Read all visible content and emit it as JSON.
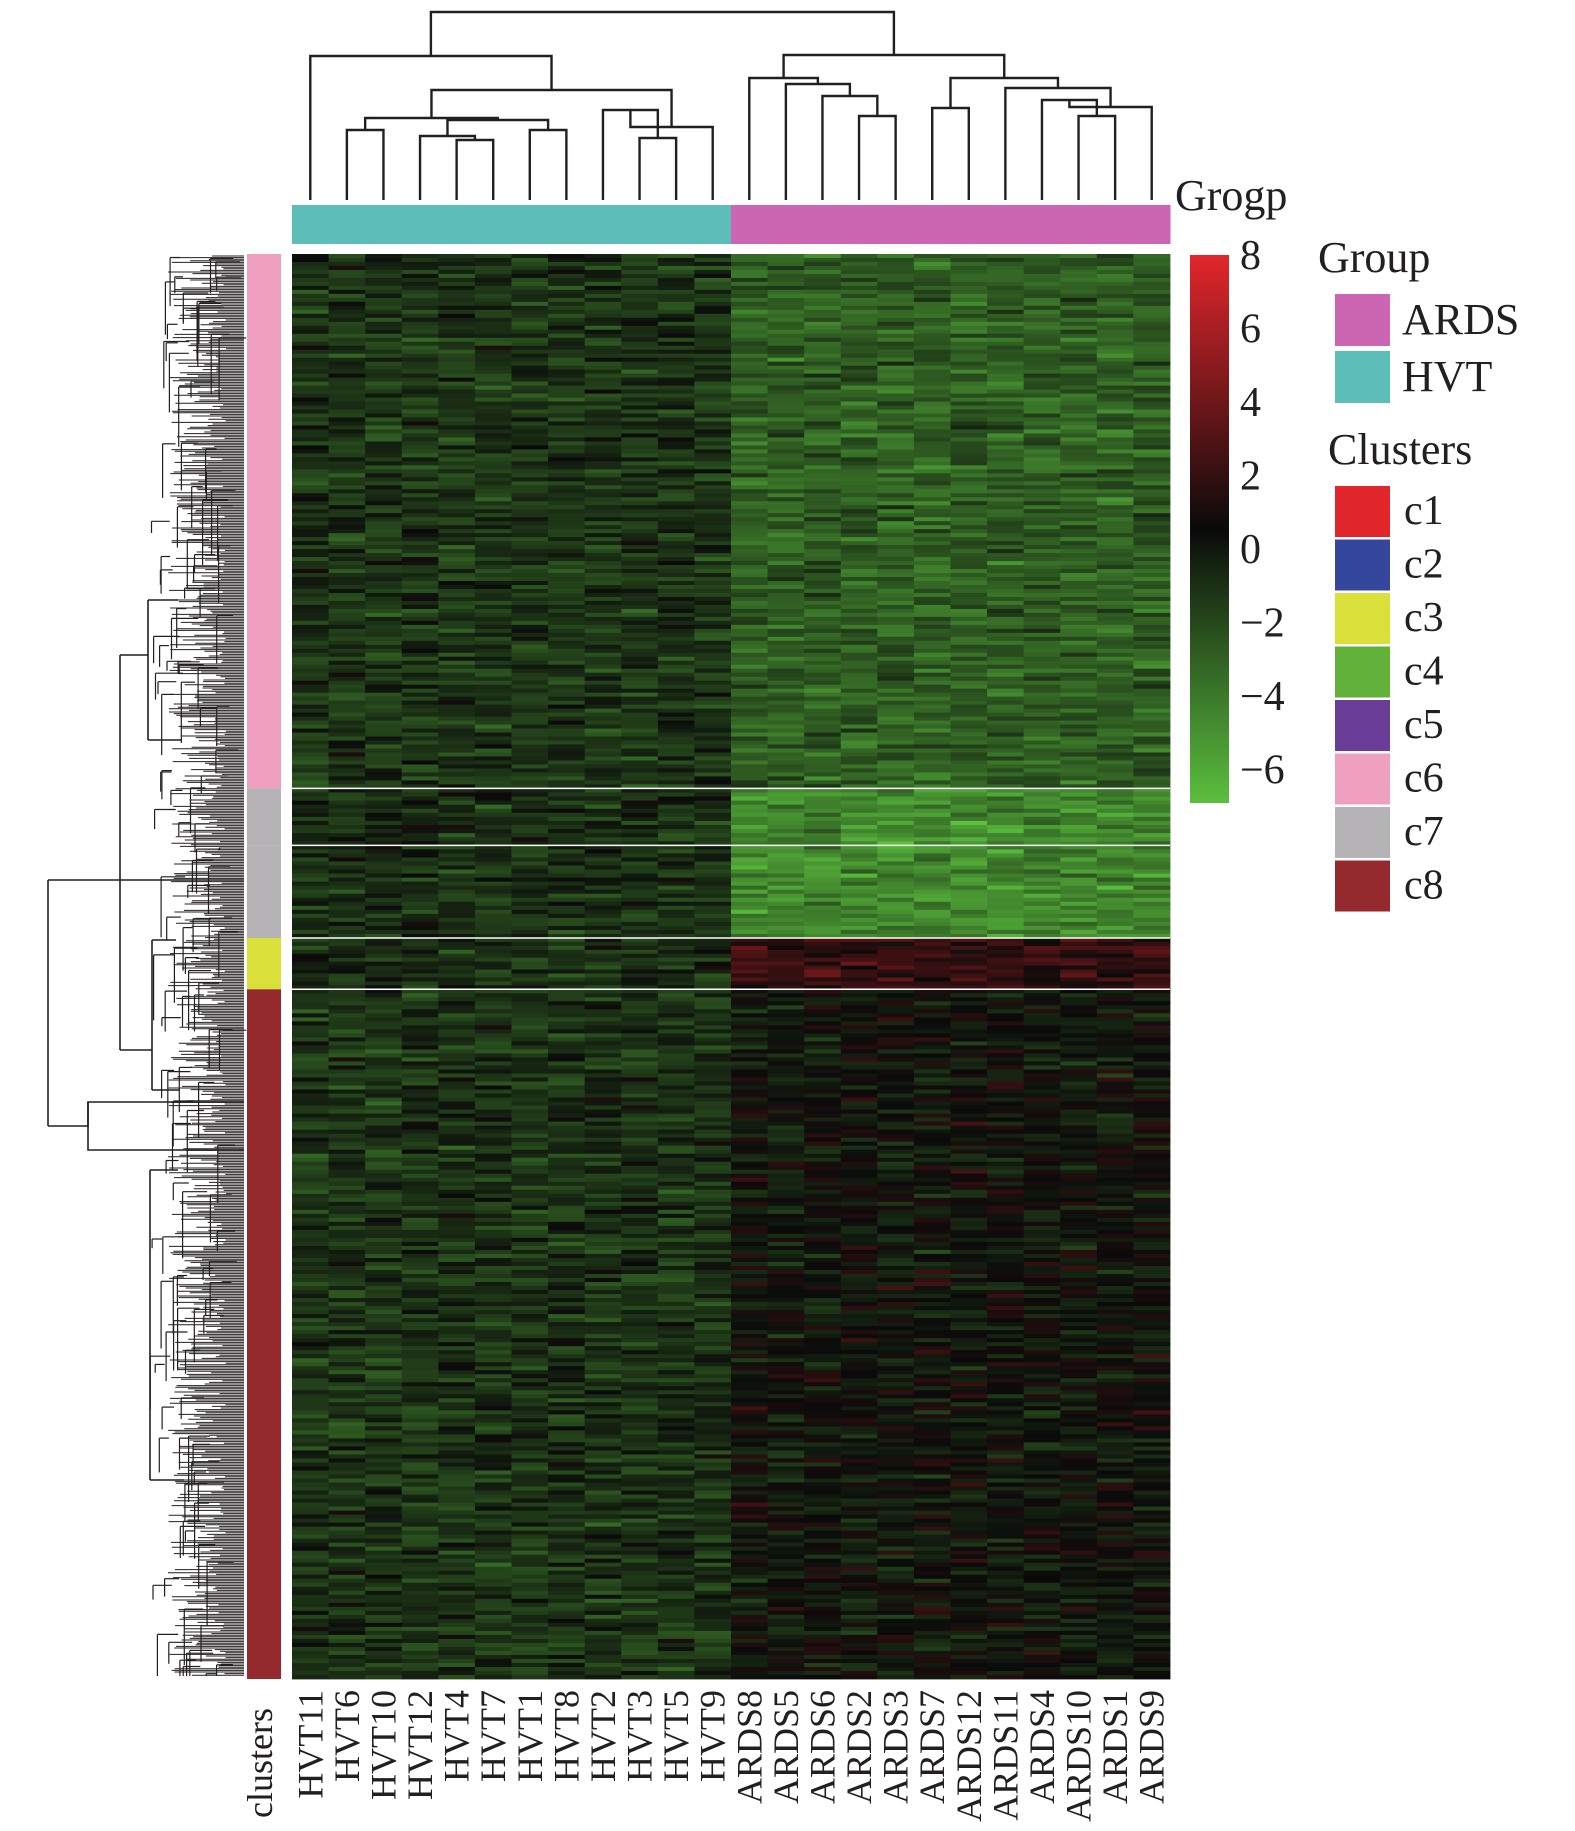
{
  "chart_data": {
    "type": "heatmap",
    "title": "",
    "annotation_label": "Grogp",
    "row_annotation_label": "clusters",
    "columns": [
      "HVT11",
      "HVT6",
      "HVT10",
      "HVT12",
      "HVT4",
      "HVT7",
      "HVT1",
      "HVT8",
      "HVT2",
      "HVT3",
      "HVT5",
      "HVT9",
      "ARDS8",
      "ARDS5",
      "ARDS6",
      "ARDS2",
      "ARDS3",
      "ARDS7",
      "ARDS12",
      "ARDS11",
      "ARDS4",
      "ARDS10",
      "ARDS1",
      "ARDS9"
    ],
    "column_groups": [
      "HVT",
      "HVT",
      "HVT",
      "HVT",
      "HVT",
      "HVT",
      "HVT",
      "HVT",
      "HVT",
      "HVT",
      "HVT",
      "HVT",
      "ARDS",
      "ARDS",
      "ARDS",
      "ARDS",
      "ARDS",
      "ARDS",
      "ARDS",
      "ARDS",
      "ARDS",
      "ARDS",
      "ARDS",
      "ARDS"
    ],
    "row_clusters": [
      {
        "cluster": "c6",
        "row_fraction": 0.375
      },
      {
        "cluster": "c7",
        "row_fraction": 0.04
      },
      {
        "cluster": "c7",
        "row_fraction": 0.065
      },
      {
        "cluster": "c3",
        "row_fraction": 0.036
      },
      {
        "cluster": "c8",
        "row_fraction": 0.484
      }
    ],
    "cluster_pattern_HVT_vs_ARDS": {
      "c6": [
        -0.6,
        -2.2
      ],
      "c7": [
        -0.4,
        -3.8
      ],
      "c3": [
        -0.3,
        2.4
      ],
      "c8": [
        -0.5,
        0.7
      ]
    },
    "color_scale": {
      "stops": [
        {
          "value": -6,
          "color": "#5bbf3e"
        },
        {
          "value": 1,
          "color": "#0a0a0a"
        },
        {
          "value": 8,
          "color": "#e2262b"
        }
      ],
      "ticks": [
        8,
        6,
        4,
        2,
        0,
        -2,
        -4,
        -6
      ],
      "tick_labels": [
        "8",
        "6",
        "4",
        "2",
        "0",
        "−2",
        "−4",
        "−6"
      ]
    },
    "legend": {
      "group_title": "Group",
      "groups": [
        {
          "name": "ARDS",
          "color": "#cc66b3"
        },
        {
          "name": "HVT",
          "color": "#5cbdb9"
        }
      ],
      "clusters_title": "Clusters",
      "clusters": [
        {
          "name": "c1",
          "color": "#e0252b"
        },
        {
          "name": "c2",
          "color": "#34479c"
        },
        {
          "name": "c3",
          "color": "#d9e03a"
        },
        {
          "name": "c4",
          "color": "#62b13a"
        },
        {
          "name": "c5",
          "color": "#6a3d97"
        },
        {
          "name": "c6",
          "color": "#f0a0bf"
        },
        {
          "name": "c7",
          "color": "#b5b3b6"
        },
        {
          "name": "c8",
          "color": "#952a2e"
        }
      ],
      "position": "right"
    }
  }
}
